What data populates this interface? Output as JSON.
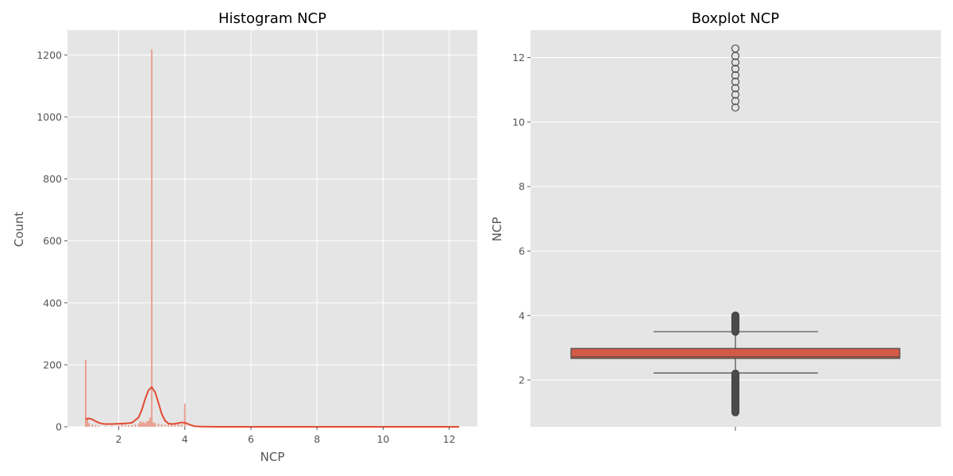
{
  "chart_data": [
    {
      "type": "histogram",
      "title": "Histogram NCP",
      "xlabel": "NCP",
      "ylabel": "Count",
      "xlim": [
        0.45,
        12.85
      ],
      "ylim": [
        0,
        1280
      ],
      "xticks": [
        2,
        4,
        6,
        8,
        10,
        12
      ],
      "yticks": [
        0,
        200,
        400,
        600,
        800,
        1000,
        1200
      ],
      "grid": true,
      "bar_color": "#e8836f",
      "kde_color": "#e24a33",
      "bins": [
        {
          "x": 1.0,
          "y": 215
        },
        {
          "x": 1.05,
          "y": 30
        },
        {
          "x": 1.1,
          "y": 12
        },
        {
          "x": 1.2,
          "y": 8
        },
        {
          "x": 1.3,
          "y": 6
        },
        {
          "x": 1.4,
          "y": 4
        },
        {
          "x": 1.6,
          "y": 3
        },
        {
          "x": 1.8,
          "y": 3
        },
        {
          "x": 2.0,
          "y": 4
        },
        {
          "x": 2.1,
          "y": 10
        },
        {
          "x": 2.2,
          "y": 6
        },
        {
          "x": 2.3,
          "y": 5
        },
        {
          "x": 2.4,
          "y": 6
        },
        {
          "x": 2.5,
          "y": 8
        },
        {
          "x": 2.6,
          "y": 10
        },
        {
          "x": 2.65,
          "y": 18
        },
        {
          "x": 2.7,
          "y": 14
        },
        {
          "x": 2.75,
          "y": 16
        },
        {
          "x": 2.8,
          "y": 12
        },
        {
          "x": 2.85,
          "y": 18
        },
        {
          "x": 2.9,
          "y": 20
        },
        {
          "x": 2.95,
          "y": 30
        },
        {
          "x": 3.0,
          "y": 1218
        },
        {
          "x": 3.05,
          "y": 15
        },
        {
          "x": 3.1,
          "y": 12
        },
        {
          "x": 3.2,
          "y": 10
        },
        {
          "x": 3.3,
          "y": 8
        },
        {
          "x": 3.4,
          "y": 6
        },
        {
          "x": 3.5,
          "y": 10
        },
        {
          "x": 3.6,
          "y": 12
        },
        {
          "x": 3.7,
          "y": 10
        },
        {
          "x": 3.8,
          "y": 10
        },
        {
          "x": 3.9,
          "y": 8
        },
        {
          "x": 4.0,
          "y": 75
        }
      ],
      "kde": {
        "x": [
          1.0,
          1.1,
          1.2,
          1.3,
          1.4,
          1.5,
          1.6,
          1.8,
          2.0,
          2.2,
          2.4,
          2.6,
          2.7,
          2.8,
          2.9,
          3.0,
          3.1,
          3.2,
          3.3,
          3.4,
          3.5,
          3.6,
          3.7,
          3.8,
          3.9,
          4.0,
          4.1,
          4.2,
          4.3,
          4.5,
          5.0,
          6.0,
          8.0,
          10.0,
          12.3
        ],
        "y": [
          25,
          27,
          24,
          18,
          13,
          10,
          9,
          9,
          10,
          11,
          13,
          30,
          55,
          90,
          118,
          128,
          112,
          78,
          42,
          20,
          11,
          9,
          10,
          12,
          14,
          13,
          9,
          5,
          2,
          0.5,
          0,
          0,
          0,
          0,
          0
        ]
      }
    },
    {
      "type": "boxplot",
      "title": "Boxplot NCP",
      "xlabel": "",
      "ylabel": "NCP",
      "ylim": [
        0.55,
        12.85
      ],
      "yticks": [
        2,
        4,
        6,
        8,
        10,
        12
      ],
      "grid": true,
      "box_color": "#d35a47",
      "edge_color": "#4a4a4a",
      "q1": 2.67,
      "median": 2.72,
      "q3": 2.98,
      "whisker_low": 2.22,
      "whisker_high": 3.5,
      "outliers_low_range": [
        1.0,
        2.2
      ],
      "outliers_mid_range": [
        3.5,
        4.0
      ],
      "outliers_high": [
        10.45,
        10.65,
        10.85,
        11.05,
        11.25,
        11.45,
        11.65,
        11.85,
        12.05,
        12.28
      ]
    }
  ]
}
